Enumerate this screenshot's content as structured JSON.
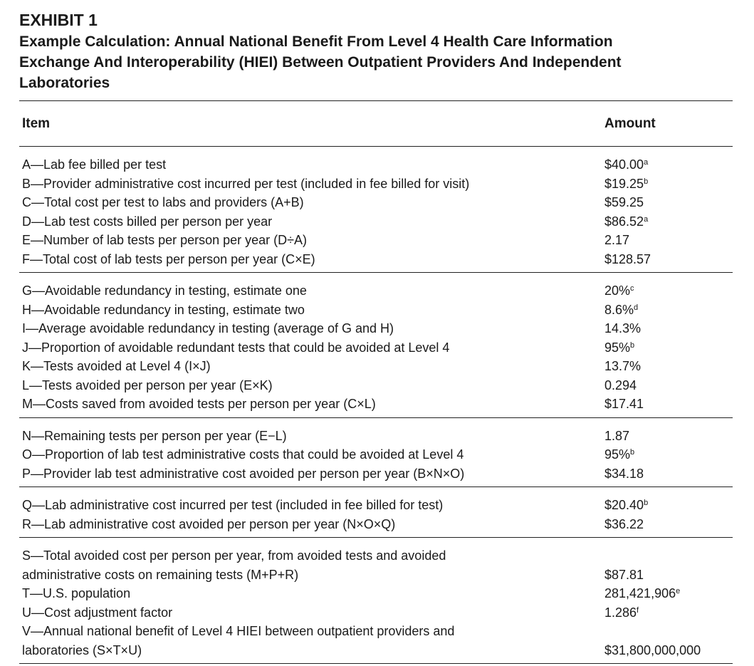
{
  "exhibit": {
    "label": "EXHIBIT 1",
    "title_lines": [
      "Example Calculation: Annual National Benefit From Level 4 Health Care Information",
      "Exchange And Interoperability (HIEI) Between Outpatient Providers And Independent",
      "Laboratories"
    ]
  },
  "table": {
    "headers": {
      "item": "Item",
      "amount": "Amount"
    },
    "groups": [
      [
        {
          "item": "A—Lab fee billed per test",
          "amount": "$40.00",
          "note": "a"
        },
        {
          "item": "B—Provider administrative cost incurred per test (included in fee billed for visit)",
          "amount": "$19.25",
          "note": "b"
        },
        {
          "item": "C—Total cost per test to labs and providers (A+B)",
          "amount": "$59.25",
          "note": ""
        },
        {
          "item": "D—Lab test costs billed per person per year",
          "amount": "$86.52",
          "note": "a"
        },
        {
          "item": "E—Number of lab tests per person per year (D÷A)",
          "amount": "2.17",
          "note": ""
        },
        {
          "item": "F—Total cost of lab tests per person per year (C×E)",
          "amount": "$128.57",
          "note": ""
        }
      ],
      [
        {
          "item": "G—Avoidable redundancy in testing, estimate one",
          "amount": "20%",
          "note": "c"
        },
        {
          "item": "H—Avoidable redundancy in testing, estimate two",
          "amount": "8.6%",
          "note": "d"
        },
        {
          "item": "I—Average avoidable redundancy in testing (average of G and H)",
          "amount": "14.3%",
          "note": ""
        },
        {
          "item": "J—Proportion of avoidable redundant tests that could be avoided at Level 4",
          "amount": "95%",
          "note": "b"
        },
        {
          "item": "K—Tests avoided at Level 4 (I×J)",
          "amount": "13.7%",
          "note": ""
        },
        {
          "item": "L—Tests avoided per person per year (E×K)",
          "amount": "0.294",
          "note": ""
        },
        {
          "item": "M—Costs saved from avoided tests per person per year (C×L)",
          "amount": "$17.41",
          "note": ""
        }
      ],
      [
        {
          "item": "N—Remaining tests per person per year (E−L)",
          "amount": "1.87",
          "note": ""
        },
        {
          "item": "O—Proportion of lab test administrative costs that could be avoided at Level 4",
          "amount": "95%",
          "note": "b"
        },
        {
          "item": "P—Provider lab test administrative cost avoided per person per year (B×N×O)",
          "amount": "$34.18",
          "note": ""
        }
      ],
      [
        {
          "item": "Q—Lab administrative cost incurred per test (included in fee billed for test)",
          "amount": "$20.40",
          "note": "b"
        },
        {
          "item": "R—Lab administrative cost avoided per person per year (N×O×Q)",
          "amount": "$36.22",
          "note": ""
        }
      ],
      [
        {
          "item": "S—Total avoided cost per person per year, from avoided tests and avoided",
          "item2": "administrative costs on remaining tests (M+P+R)",
          "amount": "$87.81",
          "note": ""
        },
        {
          "item": "T—U.S. population",
          "amount": "281,421,906",
          "note": "e"
        },
        {
          "item": "U—Cost adjustment factor",
          "amount": "1.286",
          "note": "f"
        },
        {
          "item": "V—Annual national benefit of Level 4 HIEI between outpatient providers and",
          "item2": "laboratories (S×T×U)",
          "amount": "$31,800,000,000",
          "note": ""
        }
      ]
    ]
  }
}
